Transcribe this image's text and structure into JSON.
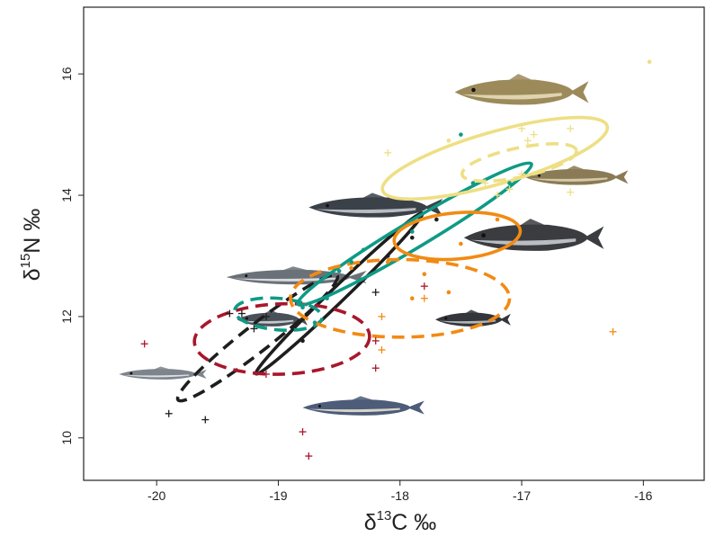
{
  "chart_data": {
    "type": "scatter",
    "title": "",
    "xlabel": {
      "prefix": "δ",
      "sup": "13",
      "main": "C ‰"
    },
    "ylabel": {
      "prefix": "δ",
      "sup": "15",
      "main": "N ‰"
    },
    "xlim": [
      -20.6,
      -15.5
    ],
    "ylim": [
      9.3,
      17.1
    ],
    "xticks": [
      "-20",
      "-19",
      "-18",
      "-17",
      "-16"
    ],
    "yticks": [
      "10",
      "12",
      "14",
      "16"
    ],
    "grid": false,
    "colors": {
      "black": "#1e1e1e",
      "red": "#a8172b",
      "teal": "#0e9a86",
      "orange": "#f28a13",
      "yellow": "#eedf84"
    },
    "series": [
      {
        "color_key": "black",
        "marker": "plus",
        "points": [
          [
            -19.9,
            10.4
          ],
          [
            -19.6,
            10.3
          ],
          [
            -19.4,
            12.05
          ],
          [
            -19.3,
            12.05
          ],
          [
            -19.2,
            11.8
          ],
          [
            -19.1,
            12.0
          ],
          [
            -18.2,
            12.4
          ]
        ],
        "ellipses": [
          {
            "cx": -19.17,
            "cy": 11.65,
            "a": 0.83,
            "b": 0.22,
            "angle": 38,
            "dash": true
          },
          {
            "cx": -18.5,
            "cy": 12.38,
            "a": 0.95,
            "b": 0.12,
            "angle": 44,
            "dash": false
          }
        ]
      },
      {
        "color_key": "black",
        "marker": "dot",
        "points": [
          [
            -18.1,
            13.0
          ],
          [
            -17.9,
            13.3
          ],
          [
            -18.8,
            11.6
          ],
          [
            -17.7,
            13.6
          ]
        ],
        "ellipses": []
      },
      {
        "color_key": "red",
        "marker": "plus",
        "points": [
          [
            -20.1,
            11.55
          ],
          [
            -19.1,
            11.05
          ],
          [
            -18.2,
            11.15
          ],
          [
            -18.2,
            11.6
          ],
          [
            -18.8,
            10.1
          ],
          [
            -18.75,
            9.7
          ],
          [
            -17.8,
            12.5
          ]
        ],
        "ellipses": [
          {
            "cx": -18.97,
            "cy": 11.63,
            "a": 0.72,
            "b": 0.58,
            "angle": 2,
            "dash": true
          }
        ]
      },
      {
        "color_key": "teal",
        "marker": "dot",
        "points": [
          [
            -18.8,
            12.15
          ],
          [
            -18.6,
            12.3
          ],
          [
            -18.5,
            12.75
          ],
          [
            -18.4,
            12.9
          ],
          [
            -18.3,
            13.1
          ],
          [
            -17.5,
            15.0
          ],
          [
            -17.9,
            13.4
          ],
          [
            -17.4,
            14.2
          ],
          [
            -17.1,
            14.2
          ],
          [
            -18.7,
            11.9
          ]
        ],
        "ellipses": [
          {
            "cx": -19.0,
            "cy": 12.04,
            "a": 0.36,
            "b": 0.26,
            "angle": -5,
            "dash": true
          },
          {
            "cx": -17.88,
            "cy": 13.36,
            "a": 1.12,
            "b": 0.22,
            "angle": 31,
            "dash": false
          }
        ]
      },
      {
        "color_key": "orange",
        "marker": "dot",
        "points": [
          [
            -17.5,
            13.2
          ],
          [
            -17.2,
            13.6
          ],
          [
            -17.8,
            12.7
          ],
          [
            -17.6,
            12.4
          ],
          [
            -18.4,
            12.8
          ],
          [
            -17.9,
            12.3
          ],
          [
            -18.1,
            12.9
          ]
        ],
        "ellipses": [
          {
            "cx": -17.53,
            "cy": 13.33,
            "a": 0.52,
            "b": 0.38,
            "angle": 5,
            "dash": false
          },
          {
            "cx": -18.0,
            "cy": 12.3,
            "a": 0.9,
            "b": 0.64,
            "angle": 0,
            "dash": true
          }
        ]
      },
      {
        "color_key": "orange",
        "marker": "plus",
        "points": [
          [
            -18.15,
            11.45
          ],
          [
            -18.15,
            12.0
          ],
          [
            -17.8,
            12.3
          ],
          [
            -16.25,
            11.75
          ]
        ],
        "ellipses": []
      },
      {
        "color_key": "yellow",
        "marker": "plus",
        "points": [
          [
            -17.0,
            15.1
          ],
          [
            -16.9,
            15.0
          ],
          [
            -16.95,
            14.9
          ],
          [
            -17.0,
            14.35
          ],
          [
            -17.1,
            14.1
          ],
          [
            -17.2,
            14.0
          ],
          [
            -16.6,
            14.05
          ],
          [
            -16.6,
            15.1
          ],
          [
            -17.3,
            14.2
          ],
          [
            -18.1,
            14.7
          ]
        ],
        "ellipses": [
          {
            "cx": -17.22,
            "cy": 14.61,
            "a": 0.96,
            "b": 0.43,
            "angle": 16,
            "dash": false
          },
          {
            "cx": -17.02,
            "cy": 14.54,
            "a": 0.48,
            "b": 0.24,
            "angle": 12,
            "dash": true
          }
        ]
      },
      {
        "color_key": "yellow",
        "marker": "dot",
        "points": [
          [
            -15.95,
            16.2
          ],
          [
            -17.6,
            14.9
          ]
        ],
        "ellipses": []
      }
    ],
    "fish_icons": [
      {
        "name": "fish-cod-large",
        "x": -17.0,
        "y": 15.7,
        "w": 1.1,
        "h": 0.48,
        "body": "#9c8a5a",
        "belly": "#e6dcb8"
      },
      {
        "name": "fish-cod-small",
        "x": -16.55,
        "y": 14.3,
        "w": 0.85,
        "h": 0.3,
        "body": "#8a7b56",
        "belly": "#ddd2b0"
      },
      {
        "name": "fish-pollock",
        "x": -16.9,
        "y": 13.3,
        "w": 1.15,
        "h": 0.5,
        "body": "#3a3c40",
        "belly": "#c9ccd0"
      },
      {
        "name": "fish-haddock",
        "x": -18.2,
        "y": 13.8,
        "w": 1.1,
        "h": 0.38,
        "body": "#3b4148",
        "belly": "#c7cbd0"
      },
      {
        "name": "fish-whiting",
        "x": -18.85,
        "y": 12.65,
        "w": 1.15,
        "h": 0.28,
        "body": "#6b7178",
        "belly": "#e4e6e8"
      },
      {
        "name": "fish-saithe-small",
        "x": -17.4,
        "y": 11.95,
        "w": 0.62,
        "h": 0.26,
        "body": "#33363a",
        "belly": "#bfc3c7"
      },
      {
        "name": "fish-haddock-small",
        "x": -19.05,
        "y": 11.95,
        "w": 0.58,
        "h": 0.26,
        "body": "#4a5058",
        "belly": "#d3d6d9"
      },
      {
        "name": "fish-blue-whiting",
        "x": -19.95,
        "y": 11.05,
        "w": 0.72,
        "h": 0.2,
        "body": "#7d848c",
        "belly": "#e8eaec"
      },
      {
        "name": "fish-herring",
        "x": -18.3,
        "y": 10.5,
        "w": 1.0,
        "h": 0.3,
        "body": "#4d5c78",
        "belly": "#e7e2d4"
      }
    ]
  }
}
